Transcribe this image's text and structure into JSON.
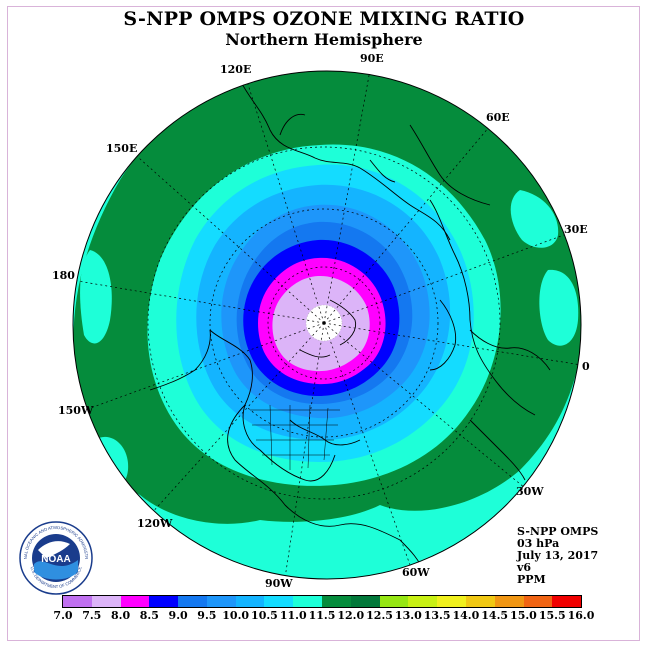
{
  "title": "S-NPP OMPS OZONE MIXING RATIO",
  "subtitle": "Northern Hemisphere",
  "longitude_labels": [
    "90E",
    "60E",
    "30E",
    "0",
    "30W",
    "60W",
    "90W",
    "120W",
    "150W",
    "180",
    "150E",
    "120E"
  ],
  "info": {
    "instrument": "S-NPP OMPS",
    "level": "03 hPa",
    "date": "July 13, 2017",
    "version": "v6",
    "units": "PPM"
  },
  "colorbar": {
    "labels": [
      "7.0",
      "7.5",
      "8.0",
      "8.5",
      "9.0",
      "9.5",
      "10.0",
      "10.5",
      "11.0",
      "11.5",
      "12.0",
      "12.5",
      "13.0",
      "13.5",
      "14.0",
      "14.5",
      "15.0",
      "15.5",
      "16.0"
    ],
    "colors": [
      "#c070f0",
      "#dcb4f8",
      "#ff00ff",
      "#0000ff",
      "#1478f0",
      "#1e96fa",
      "#14b4ff",
      "#14dcff",
      "#1effd8",
      "#058c3c",
      "#02783a",
      "#96e614",
      "#c8f014",
      "#f0f01e",
      "#f0c814",
      "#f09614",
      "#f06414",
      "#f00000",
      "#8c5a3c"
    ]
  },
  "logo": {
    "text": "NOAA",
    "ring_text": "NATIONAL OCEANIC AND ATMOSPHERIC ADMINISTRATION",
    "ring_text_bottom": "U.S. DEPARTMENT OF COMMERCE"
  },
  "map": {
    "projection": "north polar stereographic",
    "colors": {
      "outer_band": "#1effd8",
      "green_band": "#058c3c",
      "levels": [
        "#1effd8",
        "#14dcff",
        "#14b4ff",
        "#1e96fa",
        "#1478f0",
        "#0000ff",
        "#ff00ff",
        "#dcb4f8",
        "#ffffff"
      ]
    }
  }
}
